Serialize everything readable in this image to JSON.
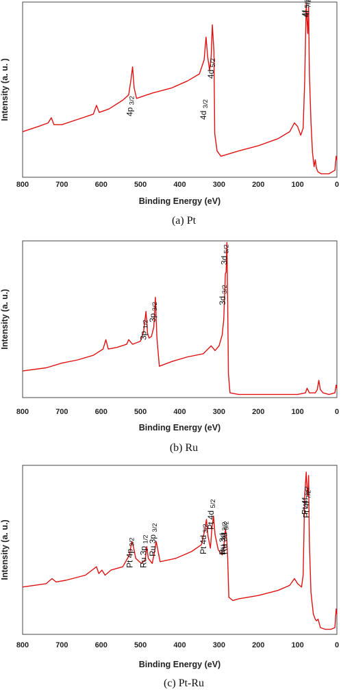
{
  "chart_data": [
    {
      "type": "line",
      "caption": "(a) Pt",
      "xlabel": "Binding Energy (eV)",
      "ylabel": "Intensity (a. u. )",
      "xlim": [
        800,
        0
      ],
      "x_reversed": true,
      "xticks": [
        "800",
        "700",
        "600",
        "500",
        "400",
        "300",
        "200",
        "100",
        "0"
      ],
      "yticks_shown": false,
      "line_color": "#e01010",
      "series": [
        {
          "x": [
            800,
            760,
            735,
            727,
            720,
            700,
            660,
            620,
            612,
            605,
            580,
            545,
            530,
            524,
            520,
            516,
            510,
            470,
            420,
            380,
            350,
            338,
            333,
            329,
            324,
            320,
            317,
            313,
            311,
            305,
            295,
            250,
            200,
            150,
            120,
            108,
            100,
            92,
            86,
            82,
            78,
            76,
            74,
            72,
            70,
            66,
            62,
            58,
            55,
            52,
            48,
            40,
            20,
            5,
            2,
            0
          ],
          "y": [
            0.26,
            0.29,
            0.31,
            0.34,
            0.3,
            0.3,
            0.33,
            0.36,
            0.41,
            0.37,
            0.39,
            0.44,
            0.47,
            0.56,
            0.63,
            0.51,
            0.45,
            0.48,
            0.51,
            0.55,
            0.59,
            0.67,
            0.8,
            0.69,
            0.61,
            0.69,
            0.87,
            0.72,
            0.25,
            0.15,
            0.12,
            0.15,
            0.18,
            0.22,
            0.26,
            0.31,
            0.29,
            0.24,
            0.28,
            0.55,
            0.99,
            0.9,
            0.82,
            0.97,
            0.6,
            0.32,
            0.14,
            0.06,
            0.1,
            0.05,
            0.03,
            0.02,
            0.02,
            0.04,
            0.12,
            0.1
          ]
        }
      ],
      "annotations": [
        {
          "text": "4p",
          "sub": "3/2",
          "x": 520
        },
        {
          "text": "4d",
          "sub": "3/2",
          "x": 333
        },
        {
          "text": "4d",
          "sub": "5/2",
          "x": 314
        },
        {
          "text": "4f",
          "sub": "5/2",
          "x": 74
        },
        {
          "text": "4f",
          "sub": "7/2",
          "x": 71
        }
      ]
    },
    {
      "type": "line",
      "caption": "(b) Ru",
      "xlabel": "Binding Energy (eV)",
      "ylabel": "Intensity (a. u.)",
      "xlim": [
        800,
        0
      ],
      "x_reversed": true,
      "xticks": [
        "800",
        "700",
        "600",
        "500",
        "400",
        "300",
        "200",
        "100",
        "0"
      ],
      "yticks_shown": false,
      "line_color": "#e01010",
      "series": [
        {
          "x": [
            800,
            740,
            700,
            660,
            620,
            595,
            588,
            582,
            560,
            535,
            530,
            520,
            500,
            492,
            486,
            482,
            478,
            472,
            466,
            462,
            458,
            452,
            420,
            380,
            340,
            320,
            310,
            300,
            292,
            288,
            284,
            282,
            280,
            278,
            276,
            272,
            250,
            200,
            150,
            100,
            80,
            76,
            70,
            55,
            50,
            46,
            42,
            35,
            20,
            5,
            2,
            0
          ],
          "y": [
            0.17,
            0.19,
            0.22,
            0.24,
            0.27,
            0.31,
            0.37,
            0.31,
            0.32,
            0.34,
            0.37,
            0.34,
            0.36,
            0.42,
            0.55,
            0.41,
            0.38,
            0.39,
            0.45,
            0.64,
            0.38,
            0.2,
            0.23,
            0.26,
            0.28,
            0.33,
            0.3,
            0.33,
            0.4,
            0.5,
            0.79,
            0.8,
            0.99,
            0.6,
            0.15,
            0.03,
            0.02,
            0.02,
            0.02,
            0.02,
            0.03,
            0.06,
            0.03,
            0.03,
            0.05,
            0.11,
            0.05,
            0.03,
            0.02,
            0.03,
            0.08,
            0.06
          ]
        }
      ],
      "annotations": [
        {
          "text": "3p",
          "sub": "1/2",
          "x": 485
        },
        {
          "text": "3p",
          "sub": "3/2",
          "x": 462
        },
        {
          "text": "3d",
          "sub": "3/2",
          "x": 284
        },
        {
          "text": "3d",
          "sub": "5/2",
          "x": 280
        }
      ]
    },
    {
      "type": "line",
      "caption": "(c) Pt-Ru",
      "xlabel": "Binding Energy (eV)",
      "ylabel": "Intensity (a. u.)",
      "xlim": [
        800,
        0
      ],
      "x_reversed": true,
      "xticks": [
        "800",
        "700",
        "600",
        "500",
        "400",
        "300",
        "200",
        "100",
        "0"
      ],
      "yticks_shown": false,
      "line_color": "#e01010",
      "series": [
        {
          "x": [
            800,
            740,
            725,
            715,
            690,
            640,
            612,
            606,
            598,
            590,
            575,
            545,
            528,
            522,
            518,
            512,
            498,
            488,
            484,
            480,
            470,
            464,
            460,
            450,
            410,
            370,
            345,
            336,
            332,
            328,
            322,
            318,
            314,
            310,
            302,
            292,
            288,
            284,
            282,
            280,
            278,
            275,
            265,
            250,
            200,
            150,
            120,
            108,
            100,
            90,
            86,
            82,
            78,
            76,
            74,
            72,
            70,
            66,
            60,
            55,
            52,
            48,
            42,
            30,
            15,
            5,
            2,
            0
          ],
          "y": [
            0.28,
            0.3,
            0.33,
            0.31,
            0.32,
            0.35,
            0.4,
            0.36,
            0.38,
            0.35,
            0.38,
            0.4,
            0.47,
            0.55,
            0.52,
            0.45,
            0.42,
            0.44,
            0.52,
            0.45,
            0.42,
            0.49,
            0.55,
            0.43,
            0.45,
            0.49,
            0.53,
            0.62,
            0.68,
            0.58,
            0.51,
            0.63,
            0.7,
            0.59,
            0.5,
            0.47,
            0.51,
            0.62,
            0.6,
            0.55,
            0.45,
            0.22,
            0.2,
            0.21,
            0.23,
            0.26,
            0.29,
            0.33,
            0.3,
            0.28,
            0.35,
            0.82,
            0.96,
            0.86,
            0.82,
            0.94,
            0.55,
            0.25,
            0.12,
            0.09,
            0.08,
            0.09,
            0.04,
            0.03,
            0.03,
            0.04,
            0.15,
            0.12
          ]
        }
      ],
      "annotations": [
        {
          "text": "Pt 4p",
          "sub": "3/2",
          "x": 520
        },
        {
          "text": "Ru 3p",
          "sub": "1/2",
          "x": 485
        },
        {
          "text": "Ru 3p",
          "sub": "3/2",
          "x": 462
        },
        {
          "text": "Pt 4d",
          "sub": "3/2",
          "x": 333
        },
        {
          "text": "Pt 4d",
          "sub": "5/2",
          "x": 314
        },
        {
          "text": "Ru 3d",
          "sub": "3/2",
          "x": 284
        },
        {
          "text": "Ru 3d",
          "sub": "5/2",
          "x": 280
        },
        {
          "text": "Pt 4f",
          "sub": "5/2",
          "x": 74
        },
        {
          "text": "Pt 4f",
          "sub": "7/2",
          "x": 71
        }
      ]
    }
  ]
}
